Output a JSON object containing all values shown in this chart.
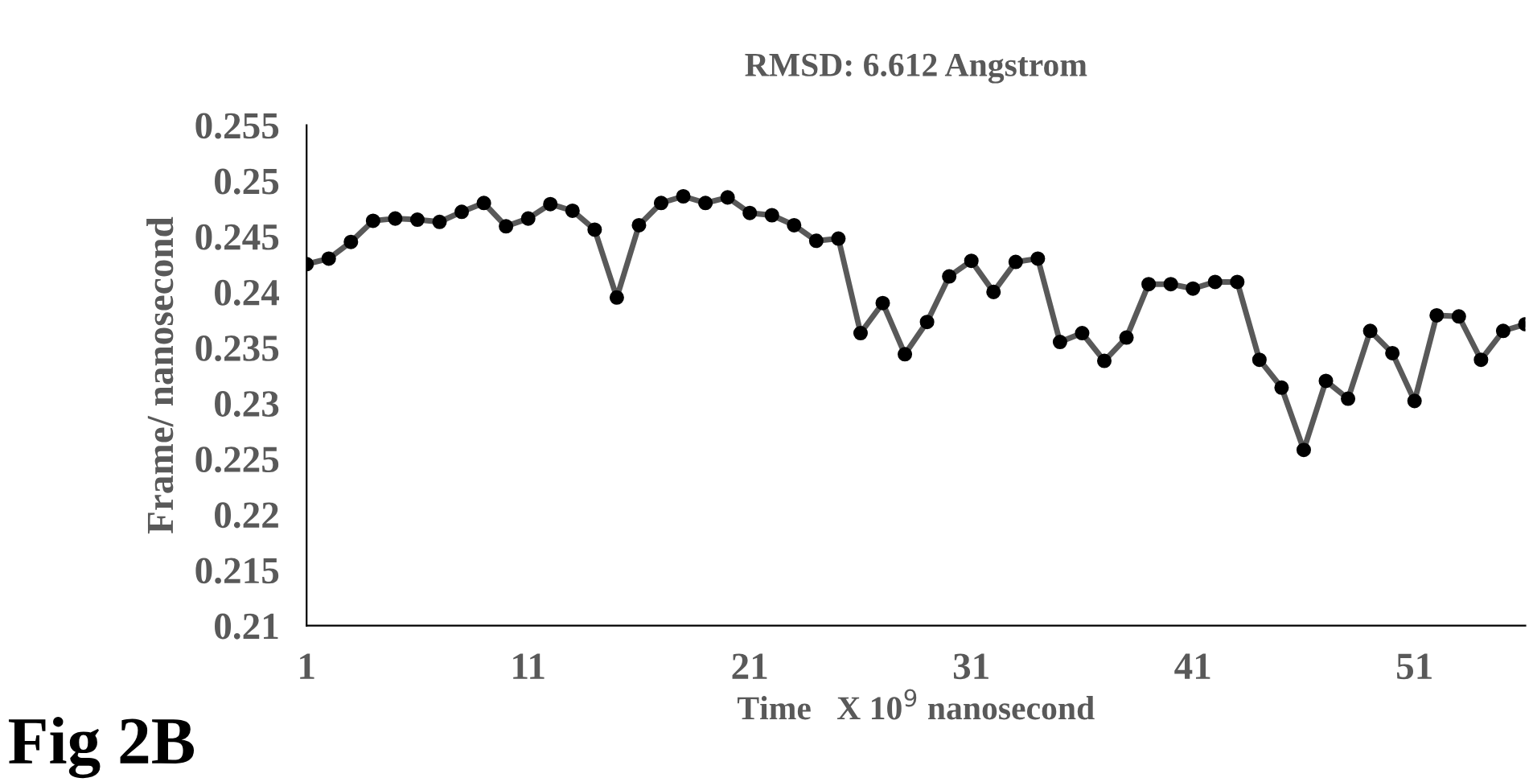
{
  "chart_data": {
    "type": "line",
    "title": "RMSD: 6.612 Angstrom",
    "xlabel": "Time   X 10$^{9}$ nanosecond",
    "ylabel": "Frame/ nanosecond",
    "annotations": [
      "Fig 2B"
    ],
    "x": [
      1,
      2,
      3,
      4,
      5,
      6,
      7,
      8,
      9,
      10,
      11,
      12,
      13,
      14,
      15,
      16,
      17,
      18,
      19,
      20,
      21,
      22,
      23,
      24,
      25,
      26,
      27,
      28,
      29,
      30,
      31,
      32,
      33,
      34,
      35,
      36,
      37,
      38,
      39,
      40,
      41,
      42,
      43,
      44,
      45,
      46,
      47,
      48,
      49,
      50,
      51,
      52,
      53,
      54,
      55,
      56
    ],
    "series": [
      {
        "color": "#595959",
        "values": [
          0.2425,
          0.243,
          0.2445,
          0.2464,
          0.2466,
          0.2465,
          0.2463,
          0.2472,
          0.248,
          0.2459,
          0.2466,
          0.2479,
          0.2473,
          0.2456,
          0.2395,
          0.246,
          0.248,
          0.2486,
          0.248,
          0.2485,
          0.2471,
          0.2469,
          0.246,
          0.2446,
          0.2448,
          0.2363,
          0.239,
          0.2344,
          0.2373,
          0.2414,
          0.2428,
          0.24,
          0.2427,
          0.243,
          0.2355,
          0.2363,
          0.2338,
          0.2359,
          0.2407,
          0.2407,
          0.2403,
          0.2409,
          0.2409,
          0.2339,
          0.2314,
          0.2258,
          0.232,
          0.2304,
          0.2365,
          0.2345,
          0.2302,
          0.2379,
          0.2378,
          0.2339,
          0.2365,
          0.2371
        ]
      }
    ],
    "xlim": [
      1,
      56
    ],
    "xticks": [
      1,
      11,
      21,
      31,
      41,
      51
    ],
    "ylim": [
      0.21,
      0.255
    ],
    "yticks": [
      0.21,
      0.215,
      0.22,
      0.225,
      0.23,
      0.235,
      0.24,
      0.245,
      0.25,
      0.255
    ],
    "marker": "circle",
    "line_style": "solid",
    "grid": false,
    "legend": false
  }
}
